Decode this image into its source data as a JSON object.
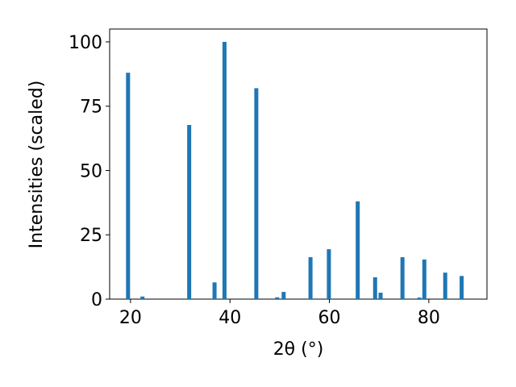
{
  "chart_data": {
    "type": "bar",
    "xlabel": "2θ (°)",
    "ylabel": "Intensities (scaled)",
    "color": "#1f77b4",
    "x": [
      19.5,
      22.4,
      31.8,
      36.9,
      38.9,
      45.3,
      49.5,
      50.8,
      56.2,
      59.9,
      65.7,
      69.2,
      70.3,
      74.7,
      78.1,
      79.1,
      83.3,
      86.6
    ],
    "values": [
      88,
      1,
      67.7,
      6.5,
      100,
      82,
      0.7,
      2.8,
      16.3,
      19.4,
      38,
      8.5,
      2.5,
      16.3,
      0.6,
      15.4,
      10.3,
      9
    ],
    "xlim": [
      15.8,
      91.7
    ],
    "ylim": [
      0,
      105
    ],
    "xticks": [
      20,
      40,
      60,
      80
    ],
    "yticks": [
      0,
      25,
      50,
      75,
      100
    ]
  }
}
